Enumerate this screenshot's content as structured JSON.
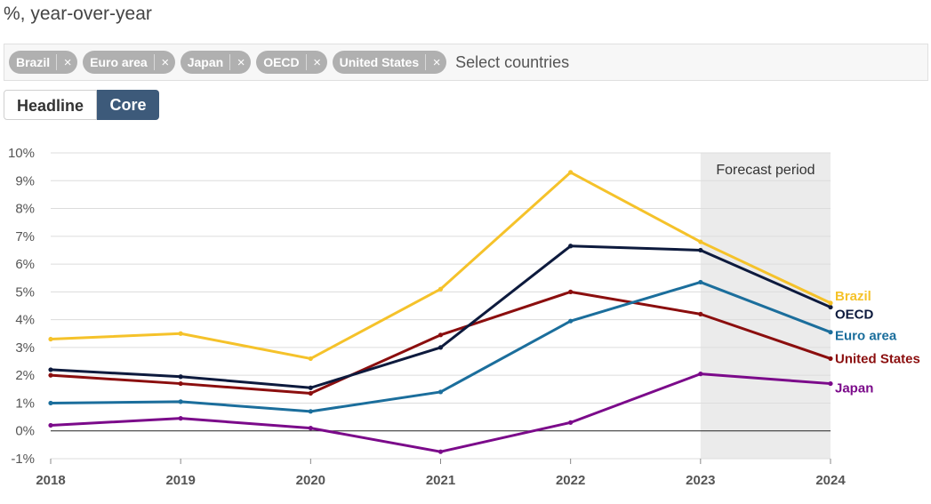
{
  "header": {
    "subtitle": "%, year-over-year"
  },
  "filter": {
    "chips": [
      "Brazil",
      "Euro area",
      "Japan",
      "OECD",
      "United States"
    ],
    "remove_glyph": "×",
    "placeholder": "Select countries"
  },
  "toggle": {
    "headline_label": "Headline",
    "core_label": "Core",
    "selected": "Core"
  },
  "chart_data": {
    "type": "line",
    "x": [
      2018,
      2019,
      2020,
      2021,
      2022,
      2023,
      2024
    ],
    "xtick_labels": [
      "2018",
      "2019",
      "2020",
      "2021",
      "2022",
      "2023",
      "2024"
    ],
    "ylim": [
      -1,
      10
    ],
    "yticks": [
      -1,
      0,
      1,
      2,
      3,
      4,
      5,
      6,
      7,
      8,
      9,
      10
    ],
    "ytick_labels": [
      "-1%",
      "0%",
      "1%",
      "2%",
      "3%",
      "4%",
      "5%",
      "6%",
      "7%",
      "8%",
      "9%",
      "10%"
    ],
    "ylabel": "%, year-over-year",
    "grid": true,
    "forecast": {
      "label": "Forecast period",
      "start": 2023,
      "end": 2024
    },
    "series": [
      {
        "name": "Brazil",
        "color": "#f5c22a",
        "values": [
          3.3,
          3.5,
          2.6,
          5.1,
          9.3,
          6.8,
          4.6
        ]
      },
      {
        "name": "OECD",
        "color": "#0d1a3d",
        "values": [
          2.2,
          1.95,
          1.55,
          3.0,
          6.65,
          6.5,
          4.45
        ]
      },
      {
        "name": "Euro area",
        "color": "#1b6e9c",
        "values": [
          1.0,
          1.05,
          0.7,
          1.4,
          3.95,
          5.35,
          3.55
        ]
      },
      {
        "name": "United States",
        "color": "#8b0e0e",
        "values": [
          2.0,
          1.7,
          1.35,
          3.45,
          5.0,
          4.2,
          2.6
        ]
      },
      {
        "name": "Japan",
        "color": "#7b0a8a",
        "values": [
          0.2,
          0.45,
          0.1,
          -0.75,
          0.3,
          2.05,
          1.7
        ]
      }
    ]
  }
}
